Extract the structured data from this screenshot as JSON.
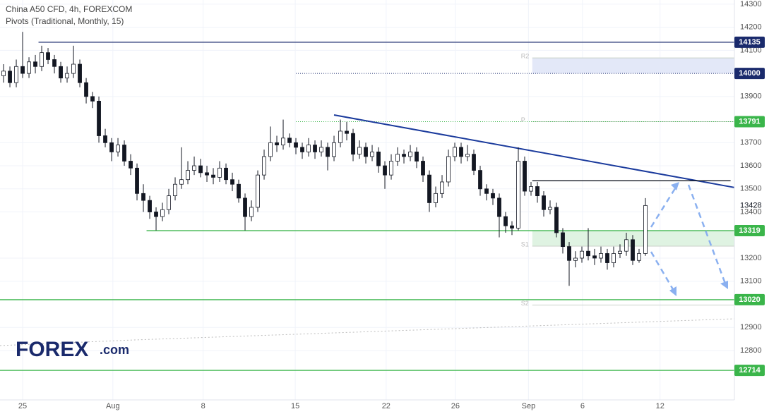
{
  "chart_data": {
    "type": "candlestick",
    "title": "China A50 CFD, 4h, FOREXCOM",
    "subtitle": "Pivots (Traditional, Monthly, 15)",
    "logo": "FOREX",
    "logo_suffix": ".com",
    "xlim": [
      -0.56,
      115
    ],
    "ylim": [
      12586,
      14318
    ],
    "xticks": [
      {
        "value": 3,
        "label": "25"
      },
      {
        "value": 17.2,
        "label": "Aug"
      },
      {
        "value": 31.4,
        "label": "8"
      },
      {
        "value": 45.9,
        "label": "15"
      },
      {
        "value": 60.2,
        "label": "22"
      },
      {
        "value": 71.1,
        "label": "26"
      },
      {
        "value": 82.6,
        "label": "Sep"
      },
      {
        "value": 91.1,
        "label": "6"
      },
      {
        "value": 103.3,
        "label": "12"
      }
    ],
    "yticks": [
      14300,
      14200,
      14100,
      13900,
      13700,
      13600,
      13500,
      13400,
      13200,
      13100,
      12900,
      12800
    ],
    "up_color": "#ffffff",
    "down_color": "#131722",
    "open": [
      13990,
      14010,
      13960,
      14030,
      14000,
      14050,
      14030,
      14090,
      14060,
      14030,
      13980,
      14000,
      14040,
      13960,
      13900,
      13880,
      13730,
      13700,
      13660,
      13690,
      13620,
      13590,
      13480,
      13450,
      13400,
      13380,
      13410,
      13470,
      13520,
      13540,
      13580,
      13600,
      13570,
      13560,
      13550,
      13590,
      13540,
      13520,
      13460,
      13380,
      13420,
      13560,
      13640,
      13700,
      13690,
      13720,
      13700,
      13680,
      13660,
      13690,
      13660,
      13680,
      13640,
      13700,
      13750,
      13740,
      13650,
      13680,
      13640,
      13660,
      13600,
      13560,
      13620,
      13650,
      13640,
      13660,
      13620,
      13560,
      13440,
      13480,
      13530,
      13640,
      13680,
      13640,
      13650,
      13580,
      13500,
      13480,
      13460,
      13380,
      13340,
      13330,
      13620,
      13490,
      13510,
      13470,
      13410,
      13420,
      13310,
      13250,
      13190,
      13200,
      13230,
      13210,
      13200,
      13220,
      13180,
      13220,
      13230,
      13280,
      13190,
      13220
    ],
    "high": [
      14040,
      14030,
      14060,
      14180,
      14070,
      14080,
      14120,
      14110,
      14080,
      14050,
      14030,
      14120,
      14060,
      13980,
      13920,
      13900,
      13760,
      13720,
      13720,
      13710,
      13650,
      13610,
      13520,
      13470,
      13420,
      13440,
      13500,
      13550,
      13680,
      13620,
      13640,
      13630,
      13600,
      13590,
      13620,
      13610,
      13570,
      13540,
      13480,
      13450,
      13580,
      13670,
      13770,
      13730,
      13800,
      13740,
      13720,
      13700,
      13720,
      13710,
      13710,
      13700,
      13730,
      13800,
      13790,
      13760,
      13710,
      13700,
      13690,
      13680,
      13620,
      13650,
      13680,
      13670,
      13690,
      13680,
      13640,
      13580,
      13510,
      13560,
      13670,
      13700,
      13700,
      13690,
      13670,
      13600,
      13520,
      13500,
      13480,
      13400,
      13360,
      13680,
      13640,
      13530,
      13530,
      13490,
      13450,
      13440,
      13330,
      13270,
      13230,
      13250,
      13330,
      13240,
      13250,
      13240,
      13250,
      13260,
      13310,
      13300,
      13240,
      13460
    ],
    "low": [
      13960,
      13940,
      13940,
      13980,
      13980,
      14000,
      14010,
      14040,
      14000,
      13960,
      13960,
      13980,
      13940,
      13870,
      13850,
      13700,
      13680,
      13620,
      13640,
      13600,
      13560,
      13450,
      13400,
      13370,
      13320,
      13360,
      13390,
      13450,
      13500,
      13520,
      13560,
      13550,
      13530,
      13520,
      13530,
      13520,
      13490,
      13440,
      13320,
      13360,
      13400,
      13540,
      13620,
      13660,
      13670,
      13680,
      13650,
      13630,
      13640,
      13630,
      13640,
      13580,
      13620,
      13680,
      13710,
      13620,
      13630,
      13610,
      13620,
      13570,
      13500,
      13540,
      13600,
      13610,
      13620,
      13590,
      13530,
      13400,
      13420,
      13460,
      13510,
      13620,
      13610,
      13620,
      13560,
      13470,
      13450,
      13430,
      13290,
      13310,
      13300,
      13320,
      13470,
      13470,
      13440,
      13380,
      13390,
      13290,
      13220,
      13080,
      13160,
      13180,
      13190,
      13170,
      13180,
      13150,
      13160,
      13200,
      13210,
      13170,
      13180,
      13210
    ],
    "close": [
      14010,
      13960,
      14030,
      14000,
      14050,
      14030,
      14090,
      14060,
      14030,
      13980,
      14000,
      14040,
      13960,
      13900,
      13880,
      13730,
      13700,
      13660,
      13690,
      13620,
      13590,
      13480,
      13450,
      13400,
      13380,
      13410,
      13470,
      13520,
      13540,
      13580,
      13600,
      13570,
      13560,
      13550,
      13590,
      13540,
      13520,
      13460,
      13380,
      13420,
      13560,
      13640,
      13700,
      13690,
      13720,
      13700,
      13680,
      13660,
      13690,
      13660,
      13680,
      13640,
      13700,
      13750,
      13740,
      13650,
      13680,
      13640,
      13660,
      13600,
      13560,
      13620,
      13650,
      13640,
      13660,
      13620,
      13560,
      13440,
      13480,
      13530,
      13640,
      13680,
      13640,
      13650,
      13580,
      13500,
      13480,
      13460,
      13380,
      13340,
      13330,
      13620,
      13490,
      13510,
      13470,
      13410,
      13420,
      13310,
      13250,
      13190,
      13200,
      13230,
      13210,
      13200,
      13220,
      13180,
      13220,
      13230,
      13280,
      13190,
      13220,
      13428
    ],
    "levels": [
      {
        "value": 14135,
        "color": "#1a2a6c",
        "style": "solid",
        "start": 5.5
      },
      {
        "value": 14000,
        "color": "#1a2a6c",
        "style": "dotted",
        "start": 46
      },
      {
        "value": 13791,
        "color": "#3ab54a",
        "style": "dotted",
        "start": 46
      },
      {
        "value": 13319,
        "color": "#3ab54a",
        "style": "solid",
        "start": 22.5
      },
      {
        "value": 13020,
        "color": "#3ab54a",
        "style": "solid",
        "start": -0.56
      },
      {
        "value": 12714,
        "color": "#3ab54a",
        "style": "solid",
        "start": -0.56
      }
    ],
    "pivots": [
      {
        "name": "R2",
        "value": 14067
      },
      {
        "name": "P",
        "value": 13791
      },
      {
        "name": "S1",
        "value": 13252
      },
      {
        "name": "S2",
        "value": 12997
      }
    ],
    "pivot_start": 83.2,
    "trendline": {
      "color": "#1a3a9c",
      "start": [
        52,
        13820
      ],
      "end": [
        115,
        13506
      ]
    },
    "resistance": {
      "color": "#131722",
      "value": 13535,
      "start": 83.2,
      "end": 114.4
    }
  }
}
